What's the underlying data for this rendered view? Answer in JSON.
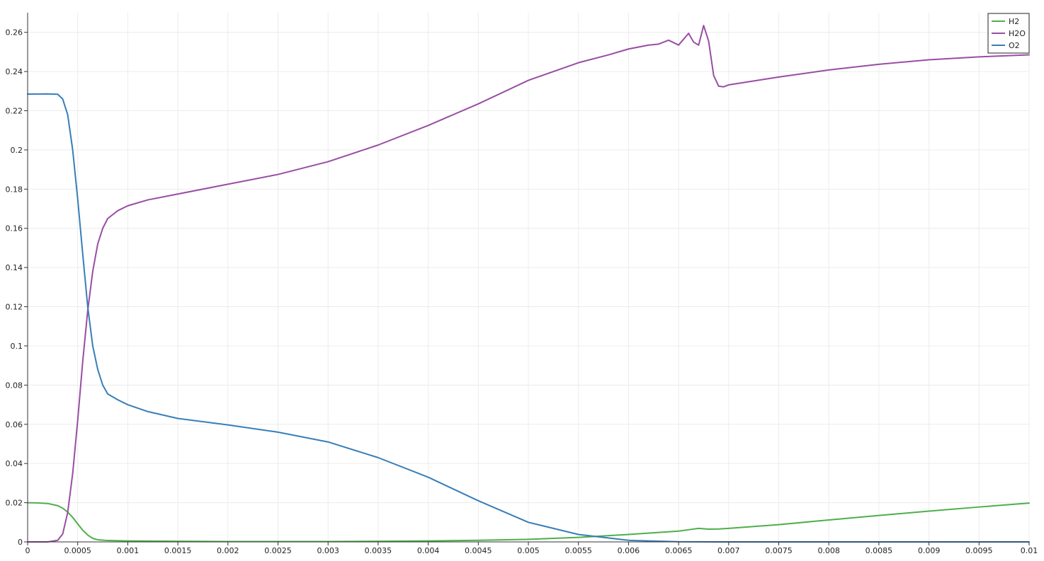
{
  "chart_data": {
    "type": "line",
    "title": "",
    "xlabel": "",
    "ylabel": "",
    "xlim": [
      0,
      0.01
    ],
    "ylim": [
      0,
      0.27
    ],
    "grid": true,
    "legend_position": "top-right",
    "x_ticks": [
      0,
      0.0005,
      0.001,
      0.0015,
      0.002,
      0.0025,
      0.003,
      0.0035,
      0.004,
      0.0045,
      0.005,
      0.0055,
      0.006,
      0.0065,
      0.007,
      0.0075,
      0.008,
      0.0085,
      0.009,
      0.0095,
      0.01
    ],
    "x_tick_labels": [
      "0",
      "0.0005",
      "0.001",
      "0.0015",
      "0.002",
      "0.0025",
      "0.003",
      "0.0035",
      "0.004",
      "0.0045",
      "0.005",
      "0.0055",
      "0.006",
      "0.0065",
      "0.007",
      "0.0075",
      "0.008",
      "0.0085",
      "0.009",
      "0.0095",
      "0.01"
    ],
    "y_ticks": [
      0,
      0.02,
      0.04,
      0.06,
      0.08,
      0.1,
      0.12,
      0.14,
      0.16,
      0.18,
      0.2,
      0.22,
      0.24,
      0.26
    ],
    "y_tick_labels": [
      "0",
      "0.02",
      "0.04",
      "0.06",
      "0.08",
      "0.1",
      "0.12",
      "0.14",
      "0.16",
      "0.18",
      "0.2",
      "0.22",
      "0.24",
      "0.26"
    ],
    "series": [
      {
        "name": "H2",
        "color": "#4daf4a",
        "points": [
          [
            0,
            0.02
          ],
          [
            0.0001,
            0.0199
          ],
          [
            0.0002,
            0.0196
          ],
          [
            0.0003,
            0.0185
          ],
          [
            0.00035,
            0.0172
          ],
          [
            0.0004,
            0.0152
          ],
          [
            0.00045,
            0.0125
          ],
          [
            0.0005,
            0.0092
          ],
          [
            0.00055,
            0.006
          ],
          [
            0.0006,
            0.0035
          ],
          [
            0.00065,
            0.0018
          ],
          [
            0.0007,
            0.0011
          ],
          [
            0.0008,
            0.0007
          ],
          [
            0.001,
            0.0005
          ],
          [
            0.0015,
            0.0003
          ],
          [
            0.002,
            0.0002
          ],
          [
            0.0025,
            0.0002
          ],
          [
            0.003,
            0.0002
          ],
          [
            0.0035,
            0.0003
          ],
          [
            0.004,
            0.0005
          ],
          [
            0.0045,
            0.0008
          ],
          [
            0.005,
            0.0013
          ],
          [
            0.0055,
            0.0023
          ],
          [
            0.006,
            0.0038
          ],
          [
            0.0065,
            0.0055
          ],
          [
            0.0066,
            0.0062
          ],
          [
            0.0067,
            0.0069
          ],
          [
            0.0068,
            0.0065
          ],
          [
            0.0069,
            0.0066
          ],
          [
            0.007,
            0.0069
          ],
          [
            0.0075,
            0.0088
          ],
          [
            0.008,
            0.0112
          ],
          [
            0.0085,
            0.0135
          ],
          [
            0.009,
            0.0157
          ],
          [
            0.0095,
            0.0178
          ],
          [
            0.01,
            0.0198
          ]
        ]
      },
      {
        "name": "H2O",
        "color": "#984ea3",
        "points": [
          [
            0,
            0
          ],
          [
            0.0002,
            0
          ],
          [
            0.0003,
            0.0008
          ],
          [
            0.00035,
            0.004
          ],
          [
            0.0004,
            0.015
          ],
          [
            0.00045,
            0.035
          ],
          [
            0.0005,
            0.062
          ],
          [
            0.00055,
            0.092
          ],
          [
            0.0006,
            0.118
          ],
          [
            0.00065,
            0.138
          ],
          [
            0.0007,
            0.152
          ],
          [
            0.00075,
            0.16
          ],
          [
            0.0008,
            0.165
          ],
          [
            0.0009,
            0.169
          ],
          [
            0.001,
            0.1715
          ],
          [
            0.0012,
            0.1745
          ],
          [
            0.0015,
            0.1775
          ],
          [
            0.002,
            0.1825
          ],
          [
            0.0025,
            0.1875
          ],
          [
            0.003,
            0.194
          ],
          [
            0.0035,
            0.2025
          ],
          [
            0.004,
            0.2125
          ],
          [
            0.0045,
            0.2235
          ],
          [
            0.005,
            0.2355
          ],
          [
            0.0055,
            0.2445
          ],
          [
            0.0058,
            0.2485
          ],
          [
            0.006,
            0.2515
          ],
          [
            0.0062,
            0.2535
          ],
          [
            0.0063,
            0.254
          ],
          [
            0.0064,
            0.256
          ],
          [
            0.0065,
            0.2535
          ],
          [
            0.0066,
            0.2595
          ],
          [
            0.00665,
            0.255
          ],
          [
            0.0067,
            0.2535
          ],
          [
            0.00675,
            0.2635
          ],
          [
            0.0068,
            0.2555
          ],
          [
            0.00685,
            0.238
          ],
          [
            0.0069,
            0.2325
          ],
          [
            0.00695,
            0.2322
          ],
          [
            0.007,
            0.2332
          ],
          [
            0.0075,
            0.2372
          ],
          [
            0.008,
            0.2408
          ],
          [
            0.0085,
            0.2437
          ],
          [
            0.009,
            0.246
          ],
          [
            0.0095,
            0.2475
          ],
          [
            0.01,
            0.2485
          ]
        ]
      },
      {
        "name": "O2",
        "color": "#377eb8",
        "points": [
          [
            0,
            0.2285
          ],
          [
            0.0002,
            0.2286
          ],
          [
            0.0003,
            0.2284
          ],
          [
            0.00035,
            0.226
          ],
          [
            0.0004,
            0.218
          ],
          [
            0.00045,
            0.2
          ],
          [
            0.0005,
            0.175
          ],
          [
            0.00055,
            0.147
          ],
          [
            0.0006,
            0.12
          ],
          [
            0.00065,
            0.1
          ],
          [
            0.0007,
            0.088
          ],
          [
            0.00075,
            0.08
          ],
          [
            0.0008,
            0.0755
          ],
          [
            0.0009,
            0.0725
          ],
          [
            0.001,
            0.07
          ],
          [
            0.0012,
            0.0665
          ],
          [
            0.0015,
            0.063
          ],
          [
            0.002,
            0.0597
          ],
          [
            0.0025,
            0.056
          ],
          [
            0.003,
            0.051
          ],
          [
            0.0035,
            0.043
          ],
          [
            0.004,
            0.033
          ],
          [
            0.0045,
            0.021
          ],
          [
            0.005,
            0.01
          ],
          [
            0.0055,
            0.0038
          ],
          [
            0.006,
            0.0008
          ],
          [
            0.0065,
            0.0001
          ],
          [
            0.007,
            0
          ],
          [
            0.008,
            0
          ],
          [
            0.01,
            0
          ]
        ]
      }
    ]
  }
}
